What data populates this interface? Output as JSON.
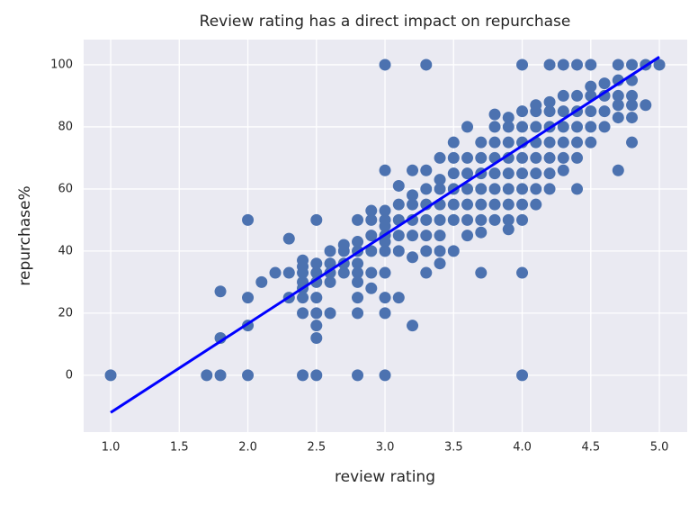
{
  "chart_data": {
    "type": "scatter",
    "title": "Review rating has a direct impact on repurchase",
    "xlabel": "review rating",
    "ylabel": "repurchase%",
    "xlim": [
      0.803,
      5.203
    ],
    "ylim": [
      -18.3,
      108.1
    ],
    "xticks": [
      {
        "value": 1,
        "label": "1.0"
      },
      {
        "value": 1.5,
        "label": "1.5"
      },
      {
        "value": 2,
        "label": "2.0"
      },
      {
        "value": 2.5,
        "label": "2.5"
      },
      {
        "value": 3,
        "label": "3.0"
      },
      {
        "value": 3.5,
        "label": "3.5"
      },
      {
        "value": 4,
        "label": "4.0"
      },
      {
        "value": 4.5,
        "label": "4.5"
      },
      {
        "value": 5,
        "label": "5.0"
      }
    ],
    "yticks": [
      0,
      20,
      40,
      60,
      80,
      100
    ],
    "grid": true,
    "point_color": "#4c72b0",
    "points": [
      [
        1,
        0
      ],
      [
        1.7,
        0
      ],
      [
        1.8,
        0
      ],
      [
        1.8,
        12
      ],
      [
        1.8,
        27
      ],
      [
        2,
        0
      ],
      [
        2,
        16
      ],
      [
        2,
        25
      ],
      [
        2,
        50
      ],
      [
        2.1,
        30
      ],
      [
        2.2,
        33
      ],
      [
        2.3,
        25
      ],
      [
        2.3,
        33
      ],
      [
        2.3,
        44
      ],
      [
        2.4,
        0
      ],
      [
        2.4,
        20
      ],
      [
        2.4,
        25
      ],
      [
        2.4,
        28
      ],
      [
        2.4,
        30
      ],
      [
        2.4,
        33
      ],
      [
        2.4,
        35
      ],
      [
        2.4,
        37
      ],
      [
        2.5,
        0
      ],
      [
        2.5,
        12
      ],
      [
        2.5,
        16
      ],
      [
        2.5,
        20
      ],
      [
        2.5,
        25
      ],
      [
        2.5,
        30
      ],
      [
        2.5,
        33
      ],
      [
        2.5,
        36
      ],
      [
        2.5,
        50
      ],
      [
        2.6,
        20
      ],
      [
        2.6,
        30
      ],
      [
        2.6,
        33
      ],
      [
        2.6,
        36
      ],
      [
        2.6,
        40
      ],
      [
        2.7,
        33
      ],
      [
        2.7,
        36
      ],
      [
        2.7,
        40
      ],
      [
        2.7,
        42
      ],
      [
        2.8,
        0
      ],
      [
        2.8,
        20
      ],
      [
        2.8,
        25
      ],
      [
        2.8,
        30
      ],
      [
        2.8,
        33
      ],
      [
        2.8,
        36
      ],
      [
        2.8,
        40
      ],
      [
        2.8,
        43
      ],
      [
        2.8,
        50
      ],
      [
        2.9,
        28
      ],
      [
        2.9,
        33
      ],
      [
        2.9,
        40
      ],
      [
        2.9,
        45
      ],
      [
        2.9,
        50
      ],
      [
        2.9,
        53
      ],
      [
        3,
        0
      ],
      [
        3,
        20
      ],
      [
        3,
        25
      ],
      [
        3,
        33
      ],
      [
        3,
        40
      ],
      [
        3,
        43
      ],
      [
        3,
        45
      ],
      [
        3,
        48
      ],
      [
        3,
        50
      ],
      [
        3,
        53
      ],
      [
        3,
        66
      ],
      [
        3,
        100
      ],
      [
        3.1,
        25
      ],
      [
        3.1,
        40
      ],
      [
        3.1,
        45
      ],
      [
        3.1,
        50
      ],
      [
        3.1,
        55
      ],
      [
        3.1,
        61
      ],
      [
        3.2,
        16
      ],
      [
        3.2,
        38
      ],
      [
        3.2,
        45
      ],
      [
        3.2,
        50
      ],
      [
        3.2,
        55
      ],
      [
        3.2,
        58
      ],
      [
        3.2,
        66
      ],
      [
        3.3,
        33
      ],
      [
        3.3,
        40
      ],
      [
        3.3,
        45
      ],
      [
        3.3,
        50
      ],
      [
        3.3,
        55
      ],
      [
        3.3,
        60
      ],
      [
        3.3,
        66
      ],
      [
        3.3,
        100
      ],
      [
        3.4,
        36
      ],
      [
        3.4,
        40
      ],
      [
        3.4,
        45
      ],
      [
        3.4,
        50
      ],
      [
        3.4,
        55
      ],
      [
        3.4,
        60
      ],
      [
        3.4,
        63
      ],
      [
        3.4,
        70
      ],
      [
        3.5,
        40
      ],
      [
        3.5,
        50
      ],
      [
        3.5,
        55
      ],
      [
        3.5,
        60
      ],
      [
        3.5,
        65
      ],
      [
        3.5,
        70
      ],
      [
        3.5,
        75
      ],
      [
        3.6,
        45
      ],
      [
        3.6,
        50
      ],
      [
        3.6,
        55
      ],
      [
        3.6,
        60
      ],
      [
        3.6,
        65
      ],
      [
        3.6,
        70
      ],
      [
        3.6,
        80
      ],
      [
        3.7,
        33
      ],
      [
        3.7,
        46
      ],
      [
        3.7,
        50
      ],
      [
        3.7,
        55
      ],
      [
        3.7,
        60
      ],
      [
        3.7,
        65
      ],
      [
        3.7,
        70
      ],
      [
        3.7,
        75
      ],
      [
        3.8,
        50
      ],
      [
        3.8,
        55
      ],
      [
        3.8,
        60
      ],
      [
        3.8,
        65
      ],
      [
        3.8,
        70
      ],
      [
        3.8,
        75
      ],
      [
        3.8,
        80
      ],
      [
        3.8,
        84
      ],
      [
        3.9,
        47
      ],
      [
        3.9,
        50
      ],
      [
        3.9,
        55
      ],
      [
        3.9,
        60
      ],
      [
        3.9,
        65
      ],
      [
        3.9,
        70
      ],
      [
        3.9,
        75
      ],
      [
        3.9,
        80
      ],
      [
        3.9,
        83
      ],
      [
        4,
        0
      ],
      [
        4,
        33
      ],
      [
        4,
        50
      ],
      [
        4,
        55
      ],
      [
        4,
        60
      ],
      [
        4,
        65
      ],
      [
        4,
        70
      ],
      [
        4,
        75
      ],
      [
        4,
        80
      ],
      [
        4,
        85
      ],
      [
        4,
        100
      ],
      [
        4.1,
        55
      ],
      [
        4.1,
        60
      ],
      [
        4.1,
        65
      ],
      [
        4.1,
        70
      ],
      [
        4.1,
        75
      ],
      [
        4.1,
        80
      ],
      [
        4.1,
        85
      ],
      [
        4.1,
        87
      ],
      [
        4.2,
        60
      ],
      [
        4.2,
        65
      ],
      [
        4.2,
        70
      ],
      [
        4.2,
        75
      ],
      [
        4.2,
        80
      ],
      [
        4.2,
        85
      ],
      [
        4.2,
        88
      ],
      [
        4.2,
        100
      ],
      [
        4.3,
        66
      ],
      [
        4.3,
        70
      ],
      [
        4.3,
        75
      ],
      [
        4.3,
        80
      ],
      [
        4.3,
        85
      ],
      [
        4.3,
        90
      ],
      [
        4.3,
        100
      ],
      [
        4.4,
        60
      ],
      [
        4.4,
        70
      ],
      [
        4.4,
        75
      ],
      [
        4.4,
        80
      ],
      [
        4.4,
        85
      ],
      [
        4.4,
        90
      ],
      [
        4.4,
        100
      ],
      [
        4.5,
        75
      ],
      [
        4.5,
        80
      ],
      [
        4.5,
        85
      ],
      [
        4.5,
        90
      ],
      [
        4.5,
        93
      ],
      [
        4.5,
        100
      ],
      [
        4.6,
        80
      ],
      [
        4.6,
        85
      ],
      [
        4.6,
        90
      ],
      [
        4.6,
        94
      ],
      [
        4.7,
        66
      ],
      [
        4.7,
        83
      ],
      [
        4.7,
        87
      ],
      [
        4.7,
        90
      ],
      [
        4.7,
        95
      ],
      [
        4.7,
        100
      ],
      [
        4.8,
        75
      ],
      [
        4.8,
        83
      ],
      [
        4.8,
        87
      ],
      [
        4.8,
        90
      ],
      [
        4.8,
        95
      ],
      [
        4.8,
        100
      ],
      [
        4.9,
        87
      ],
      [
        4.9,
        100
      ],
      [
        5,
        100
      ]
    ],
    "fit_line": {
      "color": "#0000ff",
      "x": [
        1,
        5
      ],
      "y": [
        -12,
        102.5
      ]
    }
  }
}
